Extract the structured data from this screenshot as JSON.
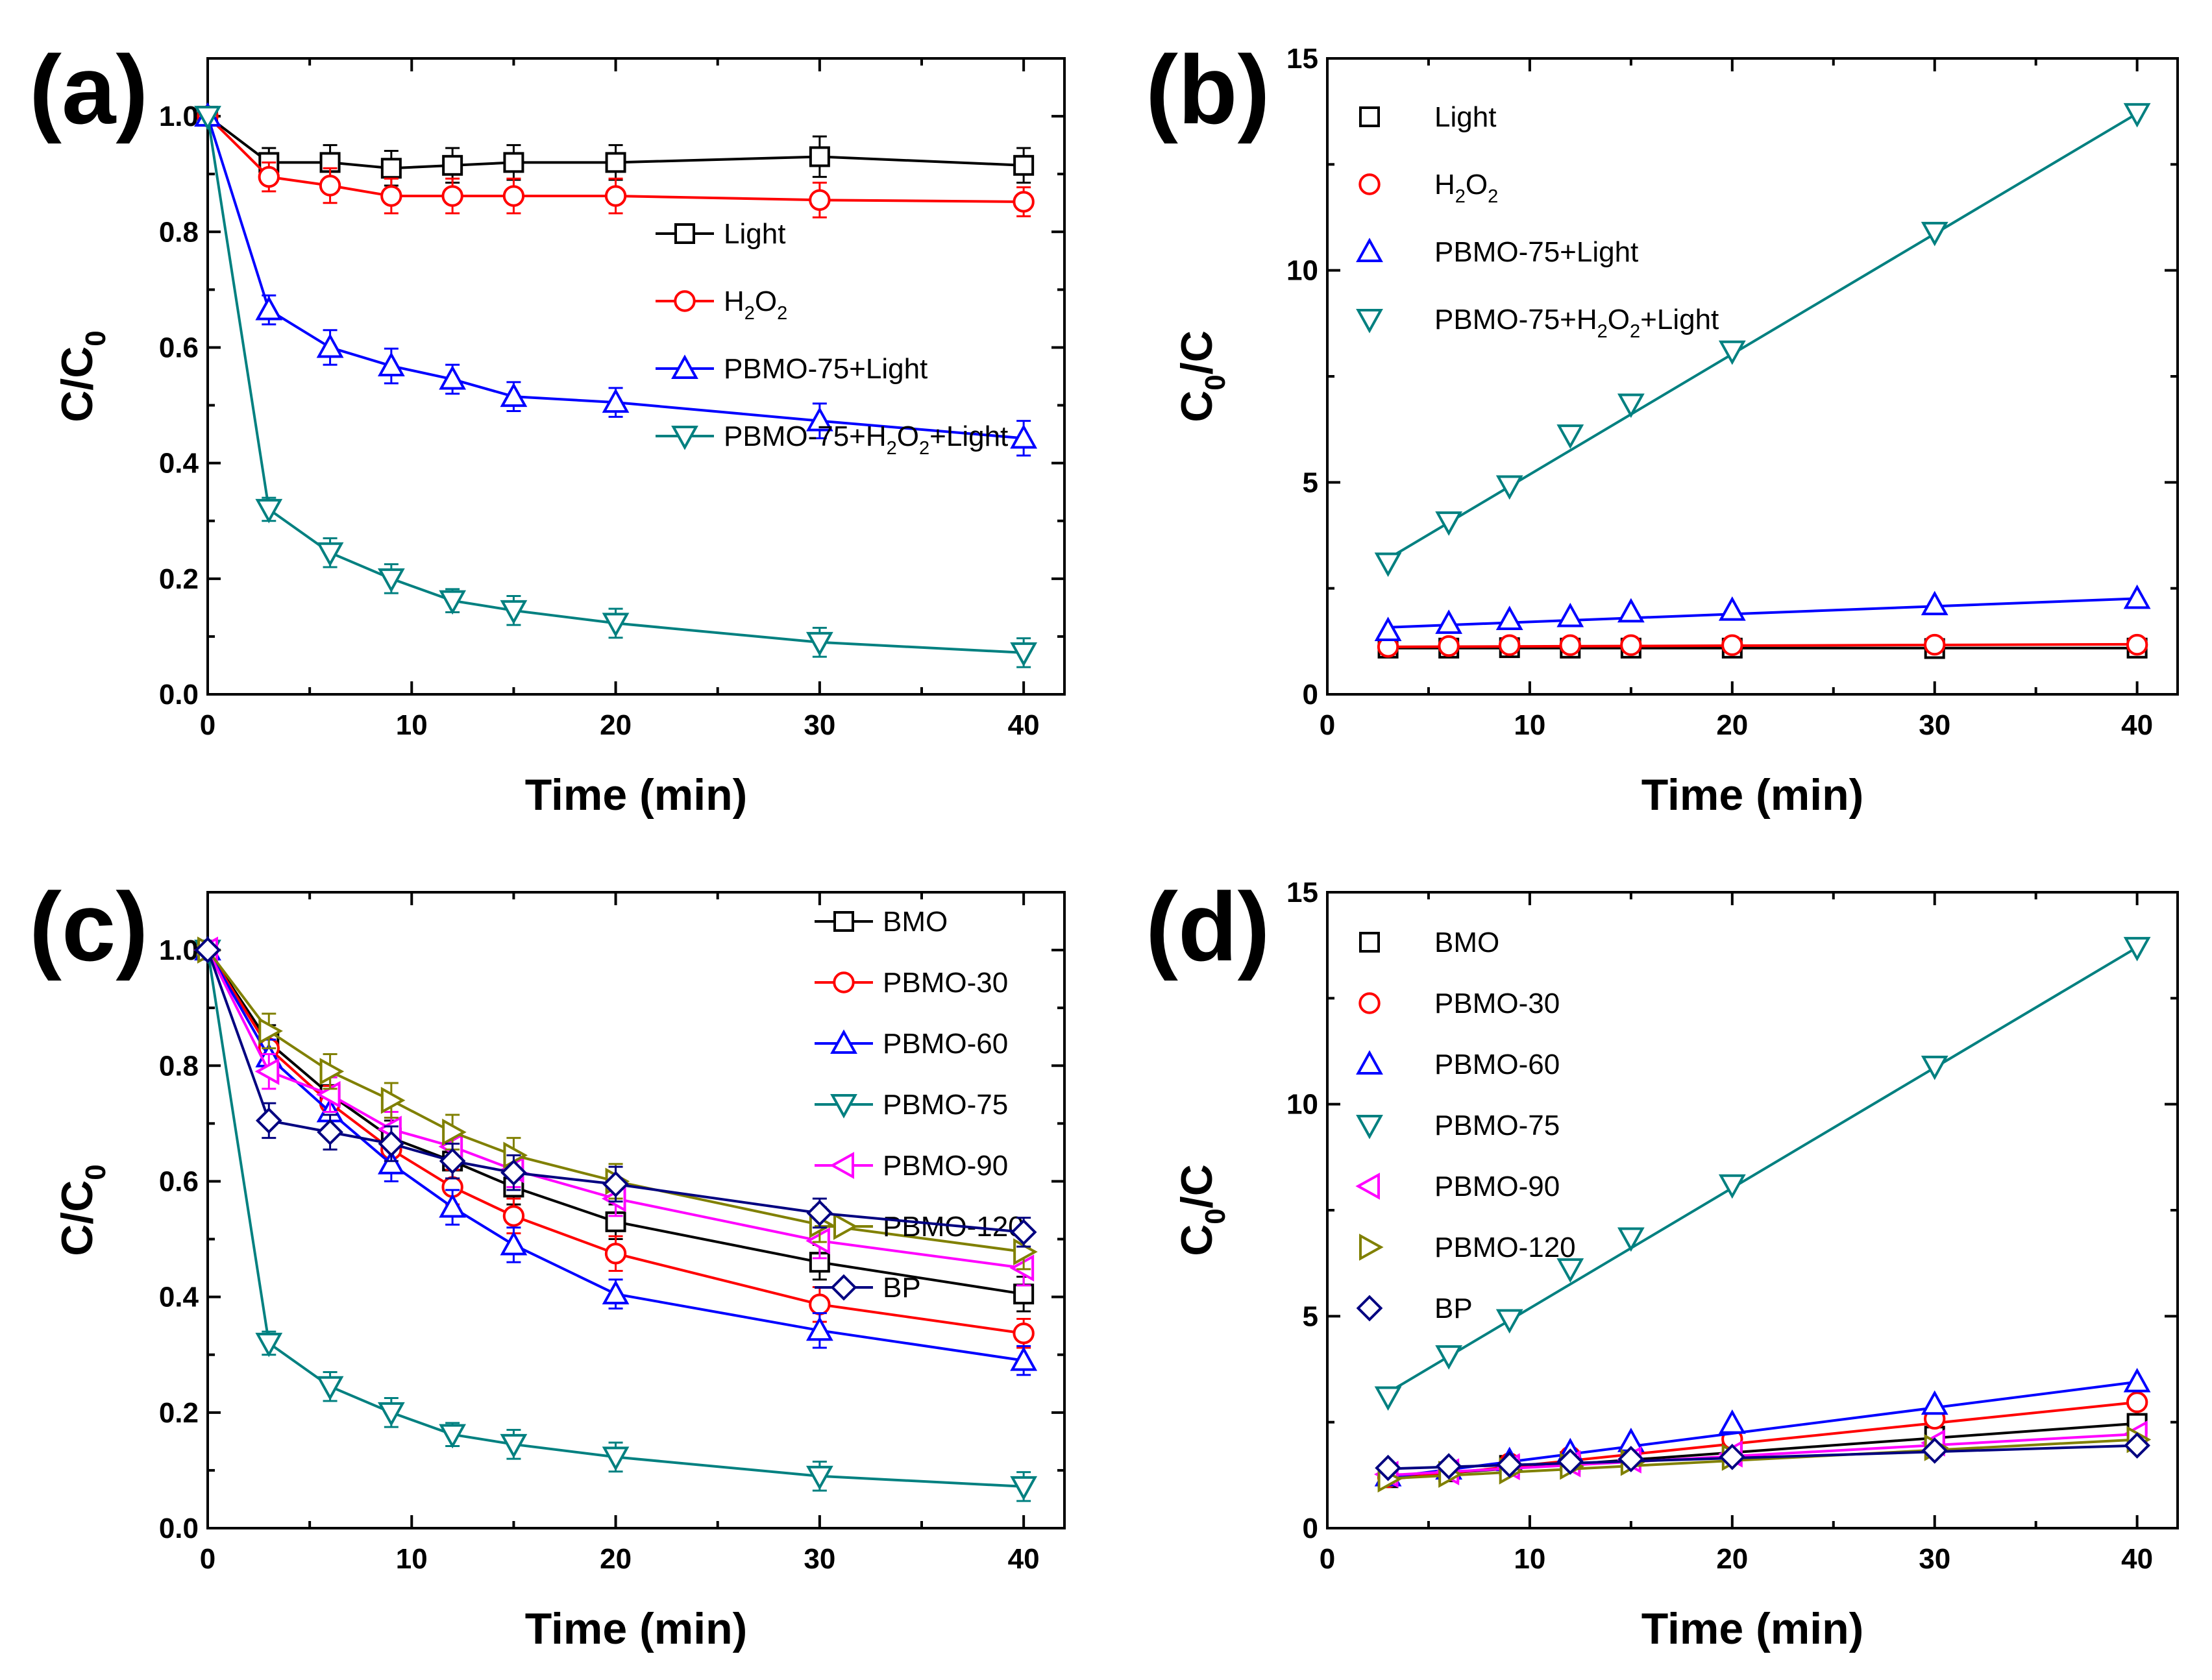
{
  "figure": {
    "width_label": ""
  },
  "chart_data": [
    {
      "panel": "(a)",
      "type": "line",
      "xlabel": "Time (min)",
      "ylabel": "C/C",
      "ylabel_sub": "0",
      "xlim": [
        0,
        42
      ],
      "ylim": [
        0,
        1.1
      ],
      "xticks": [
        0,
        10,
        20,
        30,
        40
      ],
      "yticks": [
        0.0,
        0.2,
        0.4,
        0.6,
        0.8,
        1.0
      ],
      "ytick_labels": [
        "0.0",
        "0.2",
        "0.4",
        "0.6",
        "0.8",
        "1.0"
      ],
      "connect": true,
      "legend": "inside-right",
      "x": [
        0,
        3,
        6,
        9,
        12,
        15,
        20,
        30,
        40
      ],
      "series": [
        {
          "name": "Light",
          "label_parts": [
            [
              "Light",
              ""
            ]
          ],
          "marker": "square",
          "color": "#000000",
          "values": [
            1.0,
            0.92,
            0.92,
            0.91,
            0.915,
            0.92,
            0.92,
            0.93,
            0.915
          ],
          "errors": [
            0,
            0.025,
            0.03,
            0.03,
            0.03,
            0.03,
            0.03,
            0.035,
            0.03
          ]
        },
        {
          "name": "H2O2",
          "label_parts": [
            [
              "H",
              ""
            ],
            [
              "2",
              "sub"
            ],
            [
              "O",
              ""
            ],
            [
              "2",
              "sub"
            ]
          ],
          "marker": "circle",
          "color": "#ff0000",
          "values": [
            1.0,
            0.895,
            0.88,
            0.862,
            0.862,
            0.862,
            0.862,
            0.855,
            0.852
          ],
          "errors": [
            0,
            0.025,
            0.03,
            0.03,
            0.03,
            0.03,
            0.03,
            0.03,
            0.025
          ]
        },
        {
          "name": "PBMO-75+Light",
          "label_parts": [
            [
              "PBMO-75+Light",
              ""
            ]
          ],
          "marker": "triangle-up",
          "color": "#0000ff",
          "values": [
            1.0,
            0.665,
            0.6,
            0.568,
            0.545,
            0.515,
            0.505,
            0.473,
            0.443
          ],
          "errors": [
            0,
            0.025,
            0.03,
            0.03,
            0.025,
            0.025,
            0.025,
            0.03,
            0.03
          ]
        },
        {
          "name": "PBMO-75+H2O2+Light",
          "label_parts": [
            [
              "PBMO-75+H",
              ""
            ],
            [
              "2",
              "sub"
            ],
            [
              "O",
              ""
            ],
            [
              "2",
              "sub"
            ],
            [
              "+Light",
              ""
            ]
          ],
          "marker": "triangle-down",
          "color": "#008080",
          "values": [
            1.0,
            0.32,
            0.245,
            0.2,
            0.162,
            0.145,
            0.123,
            0.09,
            0.072
          ],
          "errors": [
            0,
            0.02,
            0.025,
            0.025,
            0.02,
            0.025,
            0.025,
            0.025,
            0.025
          ]
        }
      ]
    },
    {
      "panel": "(b)",
      "type": "scatter",
      "xlabel": "Time (min)",
      "ylabel": "C",
      "ylabel_sub": "0",
      "ylabel_tail": "/C",
      "xlim": [
        0,
        42
      ],
      "ylim": [
        0,
        15
      ],
      "xticks": [
        0,
        10,
        20,
        30,
        40
      ],
      "yticks": [
        0,
        5,
        10,
        15
      ],
      "ytick_labels": [
        "0",
        "5",
        "10",
        "15"
      ],
      "connect": false,
      "fit_lines": true,
      "legend": "top-left",
      "x": [
        3,
        6,
        9,
        12,
        15,
        20,
        30,
        40
      ],
      "series": [
        {
          "name": "Light",
          "label_parts": [
            [
              "Light",
              ""
            ]
          ],
          "marker": "square",
          "color": "#000000",
          "values": [
            1.09,
            1.09,
            1.1,
            1.09,
            1.09,
            1.09,
            1.08,
            1.09
          ],
          "fit": [
            1.09,
            1.09
          ]
        },
        {
          "name": "H2O2",
          "label_parts": [
            [
              "H",
              ""
            ],
            [
              "2",
              "sub"
            ],
            [
              "O",
              ""
            ],
            [
              "2",
              "sub"
            ]
          ],
          "marker": "circle",
          "color": "#ff0000",
          "values": [
            1.12,
            1.14,
            1.16,
            1.16,
            1.16,
            1.16,
            1.17,
            1.17
          ],
          "fit": [
            1.12,
            1.18
          ]
        },
        {
          "name": "PBMO-75+Light",
          "label_parts": [
            [
              "PBMO-75+Light",
              ""
            ]
          ],
          "marker": "triangle-up",
          "color": "#0000ff",
          "values": [
            1.5,
            1.67,
            1.76,
            1.83,
            1.94,
            1.98,
            2.11,
            2.26
          ],
          "fit": [
            1.58,
            2.26
          ]
        },
        {
          "name": "PBMO-75+H2O2+Light",
          "label_parts": [
            [
              "PBMO-75+H",
              ""
            ],
            [
              "2",
              "sub"
            ],
            [
              "O",
              ""
            ],
            [
              "2",
              "sub"
            ],
            [
              "+Light",
              ""
            ]
          ],
          "marker": "triangle-down",
          "color": "#008080",
          "values": [
            3.1,
            4.07,
            4.92,
            6.12,
            6.85,
            8.1,
            10.9,
            13.7
          ],
          "fit": [
            3.2,
            13.7
          ]
        }
      ]
    },
    {
      "panel": "(c)",
      "type": "line",
      "xlabel": "Time (min)",
      "ylabel": "C/C",
      "ylabel_sub": "0",
      "xlim": [
        0,
        42
      ],
      "ylim": [
        0,
        1.1
      ],
      "xticks": [
        0,
        10,
        20,
        30,
        40
      ],
      "yticks": [
        0.0,
        0.2,
        0.4,
        0.6,
        0.8,
        1.0
      ],
      "ytick_labels": [
        "0.0",
        "0.2",
        "0.4",
        "0.6",
        "0.8",
        "1.0"
      ],
      "connect": true,
      "legend": "top-right",
      "x": [
        0,
        3,
        6,
        9,
        12,
        15,
        20,
        30,
        40
      ],
      "series": [
        {
          "name": "BMO",
          "label_parts": [
            [
              "BMO",
              ""
            ]
          ],
          "marker": "square",
          "color": "#000000",
          "values": [
            1.0,
            0.84,
            0.75,
            0.675,
            0.635,
            0.59,
            0.53,
            0.46,
            0.405
          ],
          "errors": [
            0,
            0.03,
            0.03,
            0.03,
            0.03,
            0.03,
            0.03,
            0.03,
            0.03
          ]
        },
        {
          "name": "PBMO-30",
          "label_parts": [
            [
              "PBMO-30",
              ""
            ]
          ],
          "marker": "circle",
          "color": "#ff0000",
          "values": [
            1.0,
            0.83,
            0.735,
            0.655,
            0.59,
            0.54,
            0.475,
            0.387,
            0.337
          ],
          "errors": [
            0,
            0.03,
            0.03,
            0.03,
            0.03,
            0.03,
            0.03,
            0.03,
            0.025
          ]
        },
        {
          "name": "PBMO-60",
          "label_parts": [
            [
              "PBMO-60",
              ""
            ]
          ],
          "marker": "triangle-up",
          "color": "#0000ff",
          "values": [
            1.0,
            0.815,
            0.72,
            0.63,
            0.555,
            0.49,
            0.405,
            0.342,
            0.29
          ],
          "errors": [
            0,
            0.03,
            0.03,
            0.03,
            0.03,
            0.03,
            0.025,
            0.03,
            0.025
          ]
        },
        {
          "name": "PBMO-75",
          "label_parts": [
            [
              "PBMO-75",
              ""
            ]
          ],
          "marker": "triangle-down",
          "color": "#008080",
          "values": [
            1.0,
            0.32,
            0.245,
            0.2,
            0.162,
            0.145,
            0.123,
            0.09,
            0.072
          ],
          "errors": [
            0,
            0.02,
            0.025,
            0.025,
            0.02,
            0.025,
            0.025,
            0.025,
            0.025
          ]
        },
        {
          "name": "PBMO-90",
          "label_parts": [
            [
              "PBMO-90",
              ""
            ]
          ],
          "marker": "triangle-left",
          "color": "#ff00ff",
          "values": [
            1.0,
            0.79,
            0.75,
            0.69,
            0.66,
            0.62,
            0.57,
            0.497,
            0.45
          ],
          "errors": [
            0,
            0.03,
            0.03,
            0.03,
            0.03,
            0.03,
            0.03,
            0.03,
            0.03
          ]
        },
        {
          "name": "PBMO-120",
          "label_parts": [
            [
              "PBMO-120",
              ""
            ]
          ],
          "marker": "triangle-right",
          "color": "#808000",
          "values": [
            1.0,
            0.86,
            0.79,
            0.74,
            0.685,
            0.645,
            0.6,
            0.525,
            0.478
          ],
          "errors": [
            0,
            0.03,
            0.03,
            0.03,
            0.03,
            0.03,
            0.03,
            0.03,
            0.03
          ]
        },
        {
          "name": "BP",
          "label_parts": [
            [
              "BP",
              ""
            ]
          ],
          "marker": "diamond",
          "color": "#000080",
          "values": [
            1.0,
            0.705,
            0.685,
            0.665,
            0.635,
            0.615,
            0.595,
            0.545,
            0.512
          ],
          "errors": [
            0,
            0.03,
            0.03,
            0.03,
            0.03,
            0.03,
            0.03,
            0.025,
            0.025
          ]
        }
      ]
    },
    {
      "panel": "(d)",
      "type": "scatter",
      "xlabel": "Time (min)",
      "ylabel": "C",
      "ylabel_sub": "0",
      "ylabel_tail": "/C",
      "xlim": [
        0,
        42
      ],
      "ylim": [
        0,
        15
      ],
      "xticks": [
        0,
        10,
        20,
        30,
        40
      ],
      "yticks": [
        0,
        5,
        10,
        15
      ],
      "ytick_labels": [
        "0",
        "5",
        "10",
        "15"
      ],
      "connect": false,
      "fit_lines": true,
      "legend": "top-left",
      "x": [
        3,
        6,
        9,
        12,
        15,
        20,
        30,
        40
      ],
      "series": [
        {
          "name": "BMO",
          "label_parts": [
            [
              "BMO",
              ""
            ]
          ],
          "marker": "square",
          "color": "#000000",
          "values": [
            1.19,
            1.33,
            1.48,
            1.57,
            1.69,
            1.87,
            2.17,
            2.47
          ],
          "fit": [
            1.2,
            2.47
          ]
        },
        {
          "name": "PBMO-30",
          "label_parts": [
            [
              "PBMO-30",
              ""
            ]
          ],
          "marker": "circle",
          "color": "#ff0000",
          "values": [
            1.2,
            1.36,
            1.53,
            1.69,
            1.85,
            2.1,
            2.58,
            2.97
          ],
          "fit": [
            1.15,
            2.97
          ]
        },
        {
          "name": "PBMO-60",
          "label_parts": [
            [
              "PBMO-60",
              ""
            ]
          ],
          "marker": "triangle-up",
          "color": "#0000ff",
          "values": [
            1.23,
            1.39,
            1.59,
            1.8,
            2.04,
            2.47,
            2.92,
            3.45
          ],
          "fit": [
            1.2,
            3.45
          ]
        },
        {
          "name": "PBMO-75",
          "label_parts": [
            [
              "PBMO-75",
              ""
            ]
          ],
          "marker": "triangle-down",
          "color": "#008080",
          "values": [
            3.1,
            4.07,
            4.92,
            6.12,
            6.85,
            8.1,
            10.9,
            13.7
          ],
          "fit": [
            3.2,
            13.7
          ]
        },
        {
          "name": "PBMO-90",
          "label_parts": [
            [
              "PBMO-90",
              ""
            ]
          ],
          "marker": "triangle-left",
          "color": "#ff00ff",
          "values": [
            1.27,
            1.33,
            1.45,
            1.52,
            1.61,
            1.75,
            2.01,
            2.22
          ],
          "fit": [
            1.25,
            2.22
          ]
        },
        {
          "name": "PBMO-120",
          "label_parts": [
            [
              "PBMO-120",
              ""
            ]
          ],
          "marker": "triangle-right",
          "color": "#808000",
          "values": [
            1.16,
            1.27,
            1.35,
            1.46,
            1.55,
            1.67,
            1.9,
            2.09
          ],
          "fit": [
            1.17,
            2.09
          ]
        },
        {
          "name": "BP",
          "label_parts": [
            [
              "BP",
              ""
            ]
          ],
          "marker": "diamond",
          "color": "#000080",
          "values": [
            1.42,
            1.46,
            1.5,
            1.57,
            1.63,
            1.68,
            1.83,
            1.95
          ],
          "fit": [
            1.4,
            1.95
          ]
        }
      ]
    }
  ]
}
